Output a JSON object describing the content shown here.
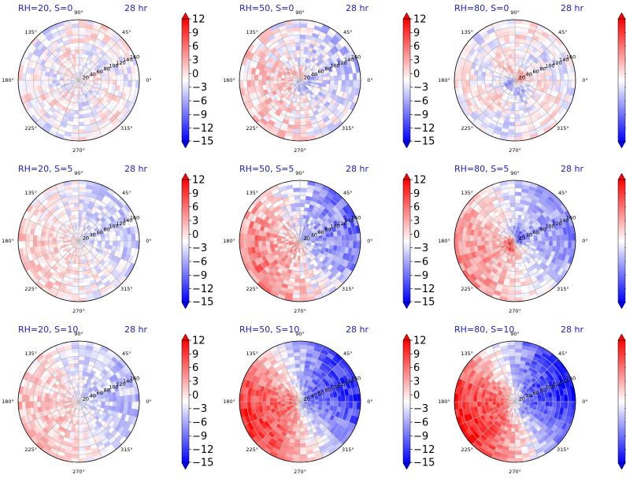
{
  "figure": {
    "colorbar_ticks": [
      "12",
      "9",
      "6",
      "3",
      "0",
      "−3",
      "−6",
      "−9",
      "−12",
      "−15"
    ],
    "colorbar_range": [
      -15,
      12
    ],
    "colormap": {
      "neg": "#0000ff",
      "mid": "#ffffff",
      "pos": "#ff0000"
    },
    "title_color": "#1f1fbf",
    "angle_labels": [
      "90°",
      "45°",
      "0°",
      "135°",
      "180°",
      "225°",
      "270°",
      "315°"
    ],
    "radial_labels": [
      "20",
      "40",
      "60",
      "80",
      "100",
      "120",
      "140",
      "160"
    ],
    "radial_max": 160
  },
  "chart_data": [
    {
      "type": "heatmap",
      "projection": "polar",
      "title": "RH=20, S=0",
      "time": "28 hr",
      "pattern": {
        "amp": 2,
        "wave": 0,
        "core": 0,
        "noise": 3
      }
    },
    {
      "type": "heatmap",
      "projection": "polar",
      "title": "RH=50, S=0",
      "time": "28 hr",
      "pattern": {
        "amp": 3,
        "wave": 1,
        "core": 6,
        "noise": 4
      }
    },
    {
      "type": "heatmap",
      "projection": "polar",
      "title": "RH=80, S=0",
      "time": "28 hr",
      "pattern": {
        "amp": 2,
        "wave": 0,
        "core": 8,
        "noise": 3
      }
    },
    {
      "type": "heatmap",
      "projection": "polar",
      "title": "RH=20, S=5",
      "time": "28 hr",
      "pattern": {
        "amp": 3,
        "wave": 1,
        "core": 0,
        "noise": 3
      }
    },
    {
      "type": "heatmap",
      "projection": "polar",
      "title": "RH=50, S=5",
      "time": "28 hr",
      "pattern": {
        "amp": 8,
        "wave": 1,
        "core": 3,
        "noise": 4
      }
    },
    {
      "type": "heatmap",
      "projection": "polar",
      "title": "RH=80, S=5",
      "time": "28 hr",
      "pattern": {
        "amp": 7,
        "wave": 1,
        "core": 10,
        "noise": 3
      }
    },
    {
      "type": "heatmap",
      "projection": "polar",
      "title": "RH=20, S=10",
      "time": "28 hr",
      "pattern": {
        "amp": 4,
        "wave": 1,
        "core": 0,
        "noise": 3
      }
    },
    {
      "type": "heatmap",
      "projection": "polar",
      "title": "RH=50, S=10",
      "time": "28 hr",
      "pattern": {
        "amp": 13,
        "wave": 1,
        "core": 4,
        "noise": 3
      }
    },
    {
      "type": "heatmap",
      "projection": "polar",
      "title": "RH=80, S=10",
      "time": "28 hr",
      "pattern": {
        "amp": 14,
        "wave": 1,
        "core": 6,
        "noise": 3
      }
    }
  ]
}
